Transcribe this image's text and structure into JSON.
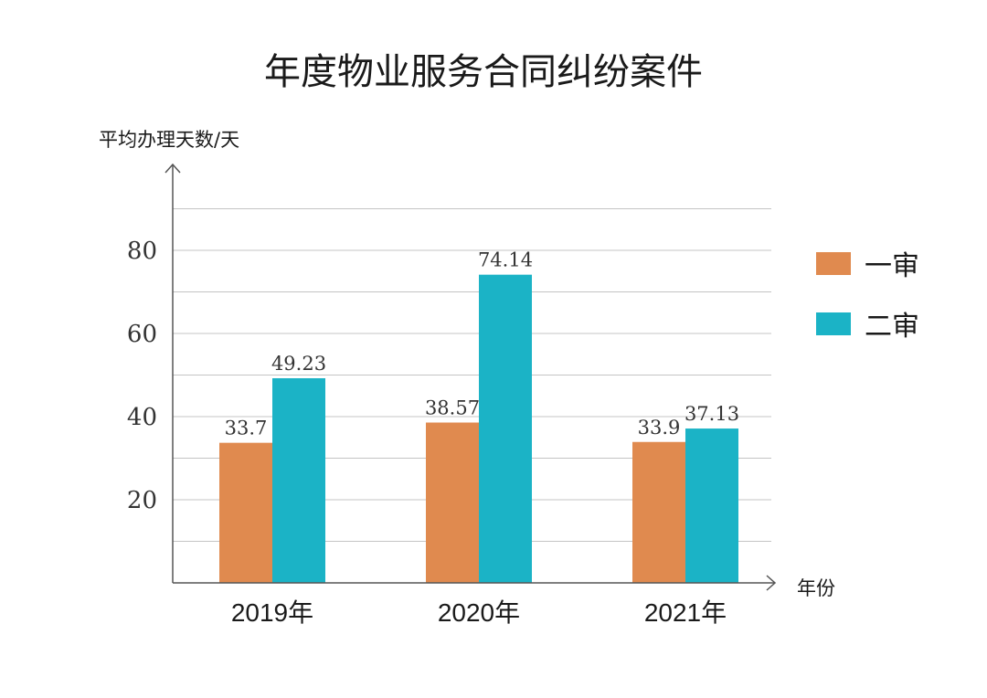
{
  "chart_data": {
    "type": "bar",
    "title": "年度物业服务合同纠纷案件",
    "ylabel": "平均办理天数/天",
    "xlabel": "年份",
    "categories": [
      "2019年",
      "2020年",
      "2021年"
    ],
    "series": [
      {
        "name": "一审",
        "color": "#e08a4f",
        "values": [
          33.7,
          38.57,
          33.9
        ]
      },
      {
        "name": "二审",
        "color": "#1bb3c6",
        "values": [
          49.23,
          74.14,
          37.13
        ]
      }
    ],
    "ylim": [
      0,
      90
    ],
    "yticks": [
      20,
      40,
      60,
      80
    ],
    "grid": true,
    "legend": "right"
  }
}
